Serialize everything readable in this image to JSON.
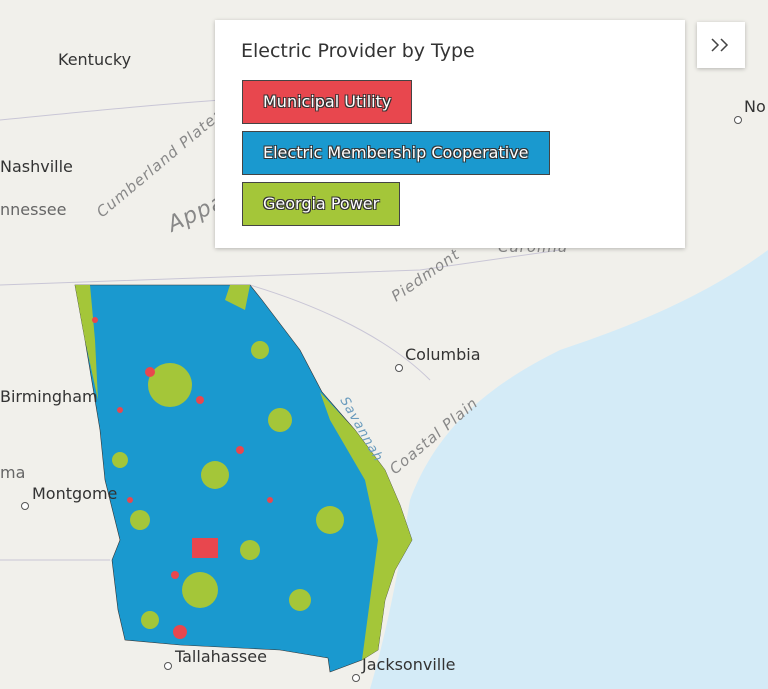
{
  "legend": {
    "title": "Electric Provider by Type",
    "items": [
      {
        "label": "Municipal Utility",
        "color": "#e8474e"
      },
      {
        "label": "Electric Membership Cooperative",
        "color": "#1a99cf"
      },
      {
        "label": "Georgia Power",
        "color": "#a4c639"
      }
    ]
  },
  "map_labels": {
    "kentucky": "Kentucky",
    "nashville": "Nashville",
    "tennessee": "nnessee",
    "cumberland": "Cumberland Plateau",
    "appa": "Appa",
    "birmingham": "Birmingham",
    "ma": "ma",
    "montgomery": "Montgome",
    "columbia": "Columbia",
    "savannah": "Savannah",
    "coastal": "Coastal Plain",
    "piedmont": "Piedmont",
    "carolina": "Carolina",
    "tallahassee": "Tallahassee",
    "jacksonville": "Jacksonville",
    "no": "No"
  }
}
